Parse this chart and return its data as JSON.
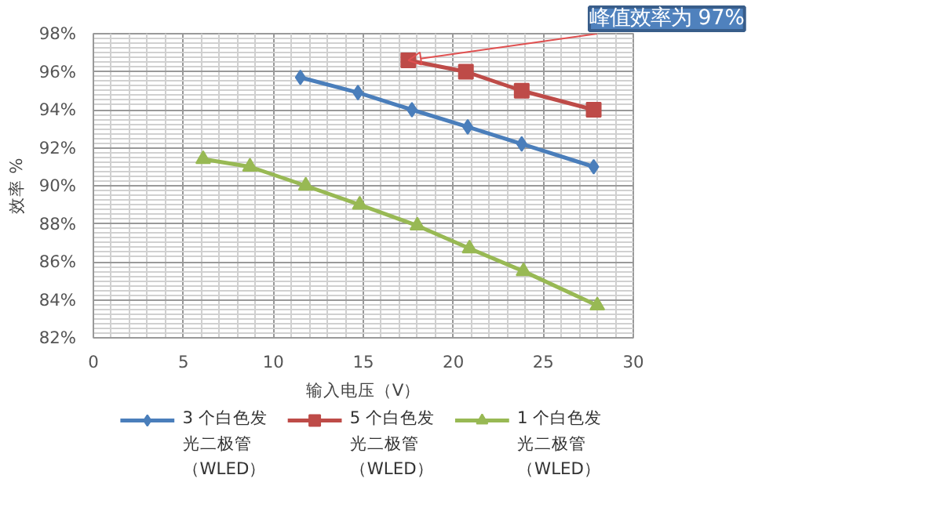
{
  "chart_data": {
    "type": "line",
    "xlabel": "输入电压（V）",
    "ylabel": "效率 %",
    "xlim": [
      0,
      30
    ],
    "xticks": [
      0,
      5,
      10,
      15,
      20,
      25,
      30
    ],
    "ylim": [
      82,
      98
    ],
    "yticks": [
      {
        "value": 82,
        "label": "82%"
      },
      {
        "value": 84,
        "label": "84%"
      },
      {
        "value": 86,
        "label": "86%"
      },
      {
        "value": 88,
        "label": "88%"
      },
      {
        "value": 90,
        "label": "90%"
      },
      {
        "value": 92,
        "label": "92%"
      },
      {
        "value": 94,
        "label": "94%"
      },
      {
        "value": 96,
        "label": "96%"
      },
      {
        "value": 98,
        "label": "98%"
      }
    ],
    "grid": true,
    "legend": "bottom",
    "line_style": "solid",
    "series": [
      {
        "name": "3 个白色发光二极管（WLED）",
        "color": "#4a7ebb",
        "marker": "diamond",
        "x": [
          11.5,
          14.7,
          17.7,
          20.8,
          23.8,
          27.8
        ],
        "values": [
          95.7,
          94.9,
          94.0,
          93.1,
          92.2,
          91.0
        ]
      },
      {
        "name": "5 个白色发光二极管（WLED）",
        "color": "#be4b48",
        "marker": "square",
        "x": [
          17.5,
          20.7,
          23.8,
          27.8
        ],
        "values": [
          96.6,
          96.0,
          95.0,
          94.0
        ]
      },
      {
        "name": "1 个白色发光二极管（WLED）",
        "color": "#98b954",
        "marker": "triangle",
        "x": [
          6.1,
          8.7,
          11.8,
          14.8,
          18.0,
          20.9,
          23.9,
          28.0
        ],
        "values": [
          91.4,
          91.0,
          90.0,
          89.0,
          87.9,
          86.7,
          85.5,
          83.7
        ]
      }
    ],
    "annotations": [
      {
        "text": "峰值效率为 97%",
        "x": 17.5,
        "y": 96.6
      }
    ]
  }
}
